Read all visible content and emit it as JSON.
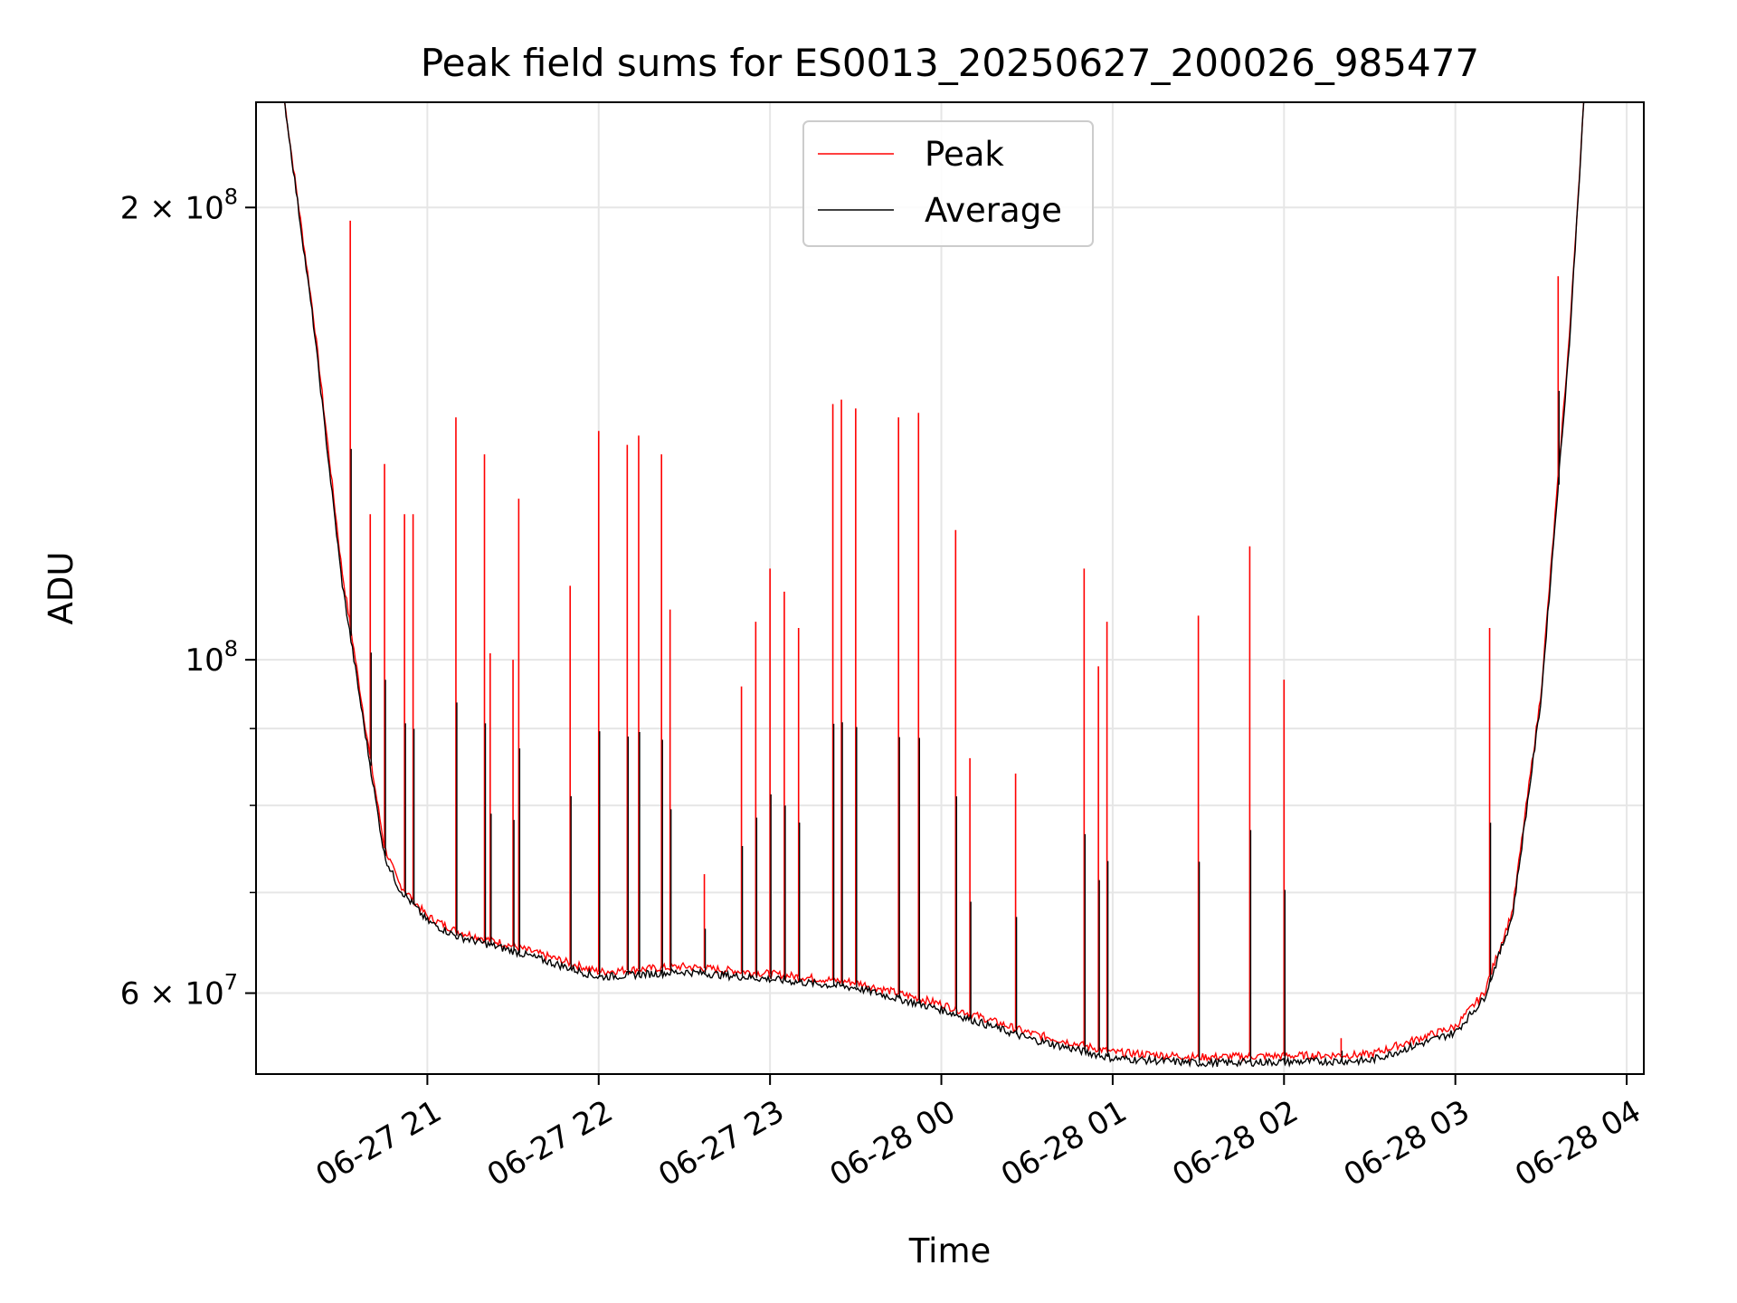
{
  "chart_data": {
    "type": "line",
    "title": "Peak field sums for ES0013_20250627_200026_985477",
    "xlabel": "Time",
    "ylabel": "ADU",
    "y_scale": "log",
    "ylim": [
      53000000,
      235000000
    ],
    "xlim": [
      "2025-06-27 20:00",
      "2025-06-28 04:06"
    ],
    "grid": true,
    "legend_position": "upper center",
    "x_tick_labels": [
      "06-27 21",
      "06-27 22",
      "06-27 23",
      "06-28 00",
      "06-28 01",
      "06-28 02",
      "06-28 03",
      "06-28 04"
    ],
    "x_ticks": [
      "2025-06-27 21:00",
      "2025-06-27 22:00",
      "2025-06-27 23:00",
      "2025-06-28 00:00",
      "2025-06-28 01:00",
      "2025-06-28 02:00",
      "2025-06-28 03:00",
      "2025-06-28 04:00"
    ],
    "y_major_ticks": [
      {
        "value": 60000000,
        "base": "6 × 10",
        "exp": "7"
      },
      {
        "value": 100000000,
        "base": "10",
        "exp": "8"
      },
      {
        "value": 200000000,
        "base": "2 × 10",
        "exp": "8"
      }
    ],
    "y_minor_ticks": [
      70000000,
      80000000,
      90000000
    ],
    "series": [
      {
        "name": "Peak",
        "color": "#ff0000",
        "baseline_x": [
          "2025-06-27 20:10",
          "2025-06-27 20:20",
          "2025-06-27 20:30",
          "2025-06-27 20:40",
          "2025-06-27 20:45",
          "2025-06-27 20:50",
          "2025-06-27 21:00",
          "2025-06-27 21:10",
          "2025-06-27 21:30",
          "2025-06-27 22:00",
          "2025-06-27 22:30",
          "2025-06-27 23:00",
          "2025-06-27 23:30",
          "2025-06-28 00:00",
          "2025-06-28 00:30",
          "2025-06-28 01:00",
          "2025-06-28 01:30",
          "2025-06-28 02:00",
          "2025-06-28 02:30",
          "2025-06-28 03:00",
          "2025-06-28 03:10",
          "2025-06-28 03:20",
          "2025-06-28 03:30",
          "2025-06-28 03:40",
          "2025-06-28 03:45"
        ],
        "baseline_y": [
          235000000,
          170000000,
          115000000,
          86000000,
          75000000,
          71000000,
          67500000,
          66000000,
          64500000,
          62000000,
          62500000,
          61800000,
          61000000,
          59000000,
          56500000,
          54800000,
          54400000,
          54500000,
          54600000,
          57000000,
          60000000,
          68000000,
          95000000,
          165000000,
          235000000
        ],
        "spikes": [
          {
            "x": "2025-06-27 20:33",
            "y": 196000000
          },
          {
            "x": "2025-06-27 20:40",
            "y": 125000000
          },
          {
            "x": "2025-06-27 20:45",
            "y": 135000000
          },
          {
            "x": "2025-06-27 20:52",
            "y": 125000000
          },
          {
            "x": "2025-06-27 20:55",
            "y": 125000000
          },
          {
            "x": "2025-06-27 21:10",
            "y": 145000000
          },
          {
            "x": "2025-06-27 21:20",
            "y": 137000000
          },
          {
            "x": "2025-06-27 21:22",
            "y": 101000000
          },
          {
            "x": "2025-06-27 21:30",
            "y": 100000000
          },
          {
            "x": "2025-06-27 21:32",
            "y": 128000000
          },
          {
            "x": "2025-06-27 21:50",
            "y": 112000000
          },
          {
            "x": "2025-06-27 22:00",
            "y": 142000000
          },
          {
            "x": "2025-06-27 22:10",
            "y": 139000000
          },
          {
            "x": "2025-06-27 22:14",
            "y": 141000000
          },
          {
            "x": "2025-06-27 22:22",
            "y": 137000000
          },
          {
            "x": "2025-06-27 22:25",
            "y": 108000000
          },
          {
            "x": "2025-06-27 22:37",
            "y": 72000000
          },
          {
            "x": "2025-06-27 22:50",
            "y": 96000000
          },
          {
            "x": "2025-06-27 22:55",
            "y": 106000000
          },
          {
            "x": "2025-06-27 23:00",
            "y": 115000000
          },
          {
            "x": "2025-06-27 23:05",
            "y": 111000000
          },
          {
            "x": "2025-06-27 23:10",
            "y": 105000000
          },
          {
            "x": "2025-06-27 23:22",
            "y": 148000000
          },
          {
            "x": "2025-06-27 23:25",
            "y": 149000000
          },
          {
            "x": "2025-06-27 23:30",
            "y": 147000000
          },
          {
            "x": "2025-06-27 23:45",
            "y": 145000000
          },
          {
            "x": "2025-06-27 23:52",
            "y": 146000000
          },
          {
            "x": "2025-06-28 00:05",
            "y": 122000000
          },
          {
            "x": "2025-06-28 00:10",
            "y": 86000000
          },
          {
            "x": "2025-06-28 00:26",
            "y": 84000000
          },
          {
            "x": "2025-06-28 00:50",
            "y": 115000000
          },
          {
            "x": "2025-06-28 00:55",
            "y": 99000000
          },
          {
            "x": "2025-06-28 00:58",
            "y": 106000000
          },
          {
            "x": "2025-06-28 01:30",
            "y": 107000000
          },
          {
            "x": "2025-06-28 01:48",
            "y": 119000000
          },
          {
            "x": "2025-06-28 02:00",
            "y": 97000000
          },
          {
            "x": "2025-06-28 02:20",
            "y": 56000000
          },
          {
            "x": "2025-06-28 03:12",
            "y": 105000000
          },
          {
            "x": "2025-06-28 03:36",
            "y": 180000000
          }
        ]
      },
      {
        "name": "Average",
        "color": "#000000",
        "baseline_x": [
          "2025-06-27 20:10",
          "2025-06-27 20:20",
          "2025-06-27 20:30",
          "2025-06-27 20:40",
          "2025-06-27 20:45",
          "2025-06-27 20:50",
          "2025-06-27 21:00",
          "2025-06-27 21:10",
          "2025-06-27 21:30",
          "2025-06-27 22:00",
          "2025-06-27 22:30",
          "2025-06-27 23:00",
          "2025-06-27 23:30",
          "2025-06-28 00:00",
          "2025-06-28 00:30",
          "2025-06-28 01:00",
          "2025-06-28 01:30",
          "2025-06-28 02:00",
          "2025-06-28 02:30",
          "2025-06-28 03:00",
          "2025-06-28 03:10",
          "2025-06-28 03:20",
          "2025-06-28 03:30",
          "2025-06-28 03:40",
          "2025-06-28 03:45"
        ],
        "baseline_y": [
          235000000,
          168000000,
          113000000,
          85000000,
          74000000,
          70500000,
          67000000,
          65500000,
          64000000,
          61500000,
          62000000,
          61300000,
          60500000,
          58500000,
          56000000,
          54300000,
          53900000,
          54000000,
          54100000,
          56500000,
          59500000,
          67500000,
          94000000,
          163000000,
          235000000
        ]
      }
    ]
  }
}
